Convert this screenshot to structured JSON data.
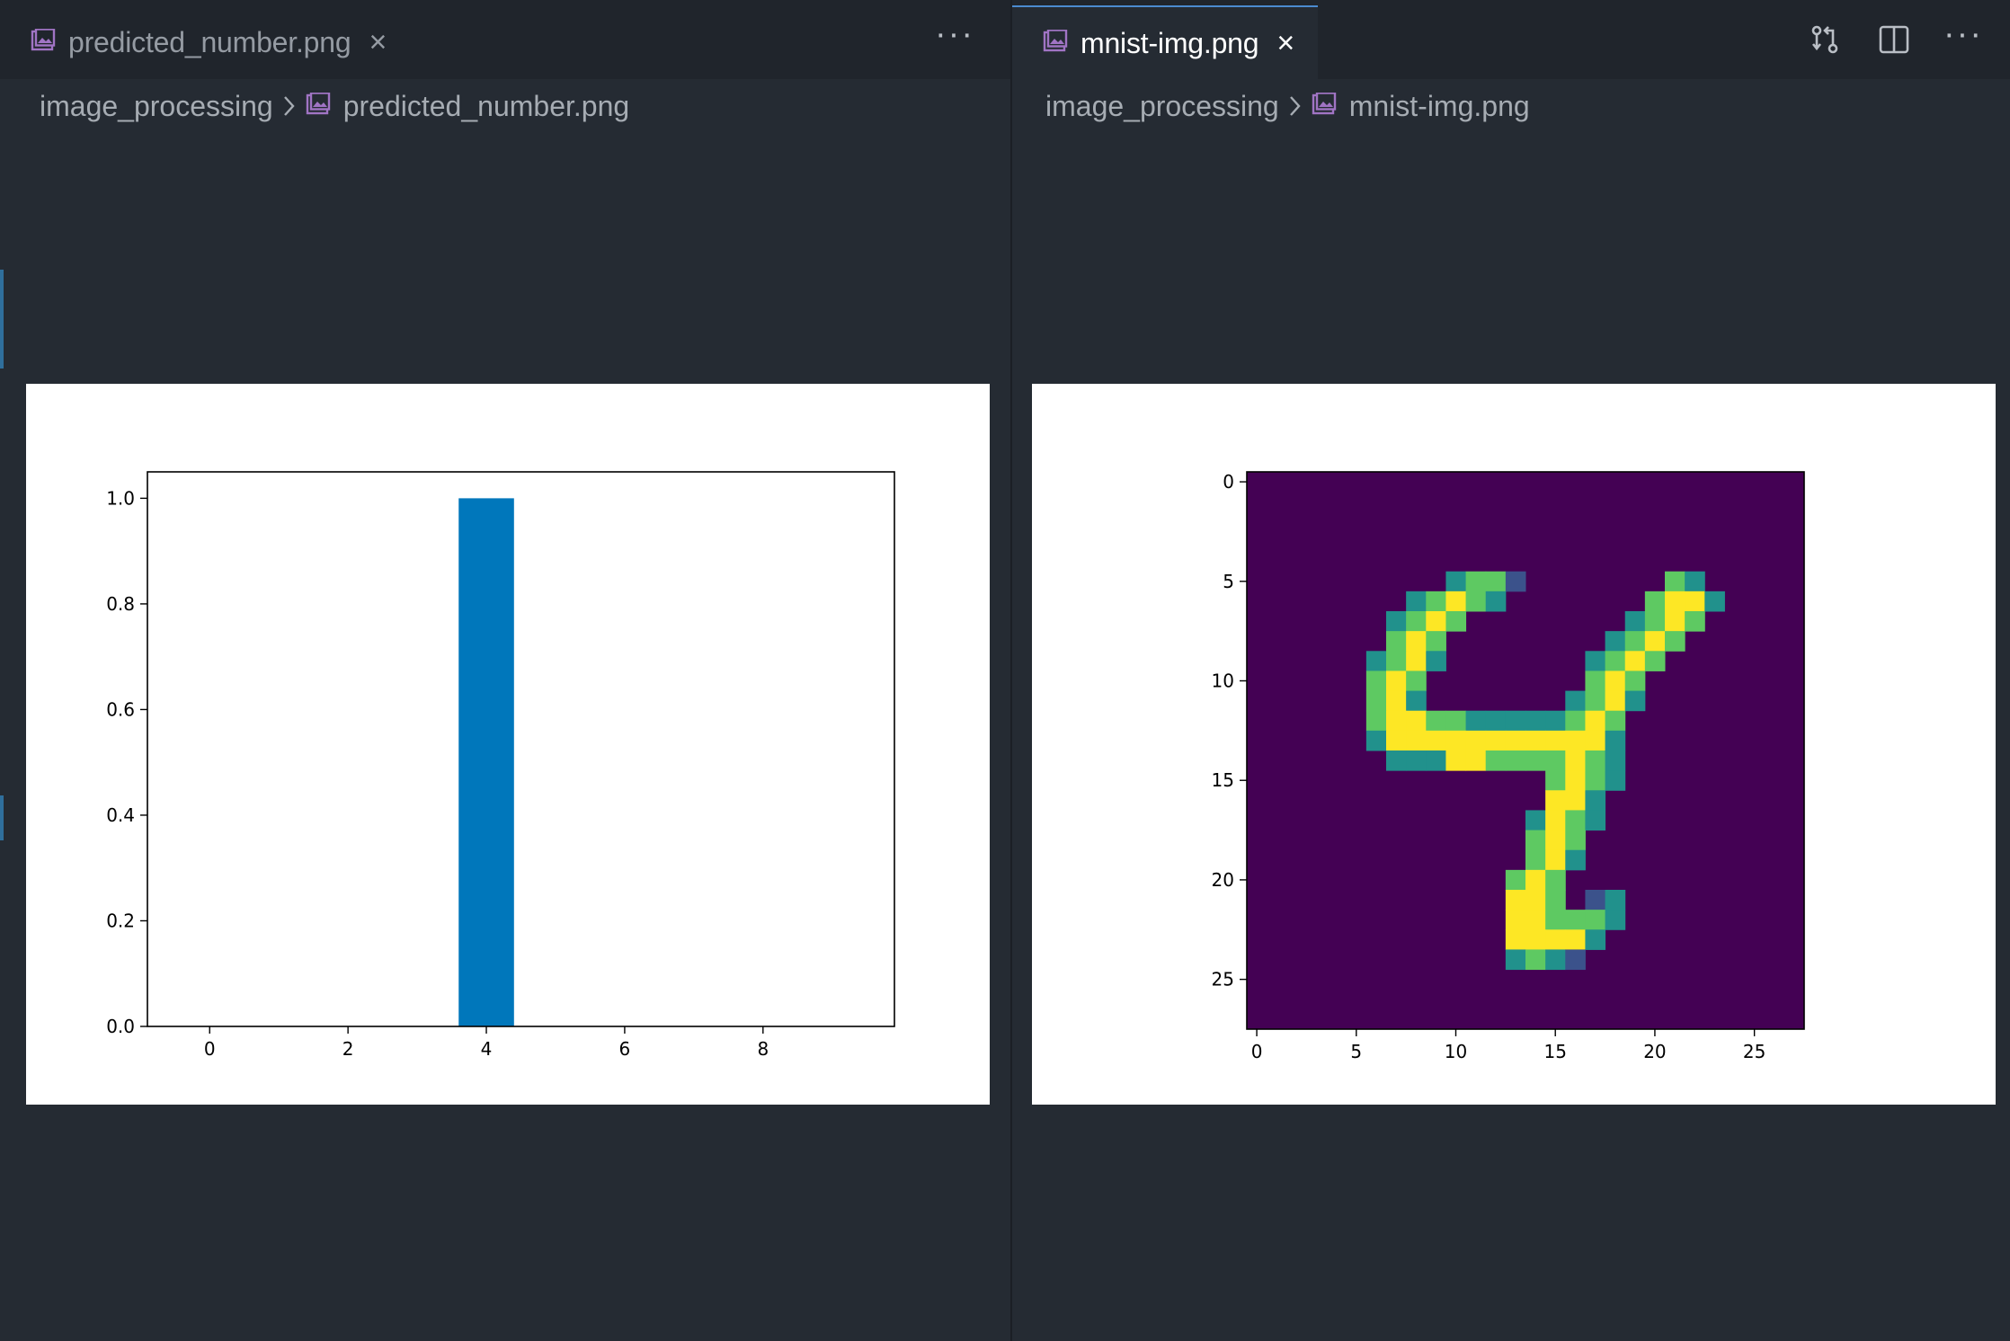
{
  "left_pane": {
    "tab": {
      "filename": "predicted_number.png",
      "active": false
    },
    "breadcrumb": {
      "folder": "image_processing",
      "file": "predicted_number.png"
    },
    "more_actions": "···",
    "chart_data": {
      "type": "bar",
      "categories": [
        0,
        1,
        2,
        3,
        4,
        5,
        6,
        7,
        8,
        9
      ],
      "values": [
        0,
        0,
        0,
        0,
        1.0,
        0,
        0,
        0,
        0,
        0
      ],
      "xticks": [
        "0",
        "2",
        "4",
        "6",
        "8"
      ],
      "yticks": [
        "0.0",
        "0.2",
        "0.4",
        "0.6",
        "0.8",
        "1.0"
      ],
      "xlim": [
        -0.9,
        9.9
      ],
      "ylim": [
        0,
        1.05
      ],
      "bar_color": "#0077bb",
      "title": "",
      "xlabel": "",
      "ylabel": ""
    }
  },
  "right_pane": {
    "tab": {
      "filename": "mnist-img.png",
      "active": true
    },
    "breadcrumb": {
      "folder": "image_processing",
      "file": "mnist-img.png"
    },
    "toolbar": {
      "compare_icon": "git-compare-icon",
      "split_icon": "split-editor-icon",
      "more_actions": "···"
    },
    "chart_data": {
      "type": "heatmap",
      "colormap": "viridis",
      "xticks": [
        "0",
        "5",
        "10",
        "15",
        "20",
        "25"
      ],
      "yticks": [
        "0",
        "5",
        "10",
        "15",
        "20",
        "25"
      ],
      "shape": [
        28,
        28
      ],
      "description_cells": "28x28 MNIST digit image (digit 4); values 0-3 color levels",
      "rows": [
        {
          "r": 5,
          "c": [
            [
              10,
              1
            ],
            [
              11,
              2
            ],
            [
              12,
              2
            ],
            [
              13,
              0
            ]
          ]
        },
        {
          "r": 5,
          "c": [
            [
              21,
              2
            ],
            [
              22,
              1
            ]
          ]
        },
        {
          "r": 6,
          "c": [
            [
              8,
              1
            ],
            [
              9,
              2
            ],
            [
              10,
              3
            ],
            [
              11,
              2
            ],
            [
              12,
              1
            ]
          ]
        },
        {
          "r": 6,
          "c": [
            [
              20,
              2
            ],
            [
              21,
              3
            ],
            [
              22,
              3
            ],
            [
              23,
              1
            ]
          ]
        },
        {
          "r": 7,
          "c": [
            [
              7,
              1
            ],
            [
              8,
              2
            ],
            [
              9,
              3
            ],
            [
              10,
              2
            ]
          ]
        },
        {
          "r": 7,
          "c": [
            [
              19,
              1
            ],
            [
              20,
              2
            ],
            [
              21,
              3
            ],
            [
              22,
              2
            ]
          ]
        },
        {
          "r": 8,
          "c": [
            [
              7,
              2
            ],
            [
              8,
              3
            ],
            [
              9,
              2
            ]
          ]
        },
        {
          "r": 8,
          "c": [
            [
              18,
              1
            ],
            [
              19,
              2
            ],
            [
              20,
              3
            ],
            [
              21,
              2
            ]
          ]
        },
        {
          "r": 9,
          "c": [
            [
              6,
              1
            ],
            [
              7,
              2
            ],
            [
              8,
              3
            ],
            [
              9,
              1
            ]
          ]
        },
        {
          "r": 9,
          "c": [
            [
              17,
              1
            ],
            [
              18,
              2
            ],
            [
              19,
              3
            ],
            [
              20,
              2
            ]
          ]
        },
        {
          "r": 10,
          "c": [
            [
              6,
              2
            ],
            [
              7,
              3
            ],
            [
              8,
              2
            ]
          ]
        },
        {
          "r": 10,
          "c": [
            [
              17,
              2
            ],
            [
              18,
              3
            ],
            [
              19,
              2
            ]
          ]
        },
        {
          "r": 11,
          "c": [
            [
              6,
              2
            ],
            [
              7,
              3
            ],
            [
              8,
              1
            ]
          ]
        },
        {
          "r": 11,
          "c": [
            [
              16,
              1
            ],
            [
              17,
              2
            ],
            [
              18,
              3
            ],
            [
              19,
              1
            ]
          ]
        },
        {
          "r": 12,
          "c": [
            [
              6,
              2
            ],
            [
              7,
              3
            ],
            [
              8,
              3
            ],
            [
              9,
              2
            ],
            [
              10,
              2
            ],
            [
              11,
              1
            ],
            [
              12,
              1
            ],
            [
              13,
              1
            ],
            [
              14,
              1
            ],
            [
              15,
              1
            ],
            [
              16,
              2
            ],
            [
              17,
              3
            ],
            [
              18,
              2
            ]
          ]
        },
        {
          "r": 13,
          "c": [
            [
              6,
              1
            ],
            [
              7,
              3
            ],
            [
              8,
              3
            ],
            [
              9,
              3
            ],
            [
              10,
              3
            ],
            [
              11,
              3
            ],
            [
              12,
              3
            ],
            [
              13,
              3
            ],
            [
              14,
              3
            ],
            [
              15,
              3
            ],
            [
              16,
              3
            ],
            [
              17,
              3
            ],
            [
              18,
              1
            ]
          ]
        },
        {
          "r": 14,
          "c": [
            [
              7,
              1
            ],
            [
              8,
              1
            ],
            [
              9,
              1
            ],
            [
              10,
              3
            ],
            [
              11,
              3
            ],
            [
              12,
              2
            ],
            [
              13,
              2
            ],
            [
              14,
              2
            ],
            [
              15,
              2
            ],
            [
              16,
              3
            ],
            [
              17,
              2
            ],
            [
              18,
              1
            ]
          ]
        },
        {
          "r": 15,
          "c": [
            [
              15,
              2
            ],
            [
              16,
              3
            ],
            [
              17,
              2
            ],
            [
              18,
              1
            ]
          ]
        },
        {
          "r": 16,
          "c": [
            [
              15,
              3
            ],
            [
              16,
              3
            ],
            [
              17,
              1
            ]
          ]
        },
        {
          "r": 17,
          "c": [
            [
              14,
              1
            ],
            [
              15,
              3
            ],
            [
              16,
              2
            ],
            [
              17,
              1
            ]
          ]
        },
        {
          "r": 18,
          "c": [
            [
              14,
              2
            ],
            [
              15,
              3
            ],
            [
              16,
              2
            ]
          ]
        },
        {
          "r": 19,
          "c": [
            [
              14,
              2
            ],
            [
              15,
              3
            ],
            [
              16,
              1
            ]
          ]
        },
        {
          "r": 20,
          "c": [
            [
              13,
              2
            ],
            [
              14,
              3
            ],
            [
              15,
              2
            ]
          ]
        },
        {
          "r": 21,
          "c": [
            [
              13,
              3
            ],
            [
              14,
              3
            ],
            [
              15,
              2
            ],
            [
              17,
              0
            ],
            [
              18,
              1
            ]
          ]
        },
        {
          "r": 22,
          "c": [
            [
              13,
              3
            ],
            [
              14,
              3
            ],
            [
              15,
              2
            ],
            [
              16,
              2
            ],
            [
              17,
              2
            ],
            [
              18,
              1
            ]
          ]
        },
        {
          "r": 23,
          "c": [
            [
              13,
              3
            ],
            [
              14,
              3
            ],
            [
              15,
              3
            ],
            [
              16,
              3
            ],
            [
              17,
              1
            ]
          ]
        },
        {
          "r": 24,
          "c": [
            [
              13,
              1
            ],
            [
              14,
              2
            ],
            [
              15,
              1
            ],
            [
              16,
              0
            ]
          ]
        }
      ],
      "background_color": "#440154",
      "level_colors": [
        "#3b528b",
        "#21918c",
        "#5ec962",
        "#fde725"
      ],
      "title": "",
      "xlabel": "",
      "ylabel": ""
    }
  }
}
